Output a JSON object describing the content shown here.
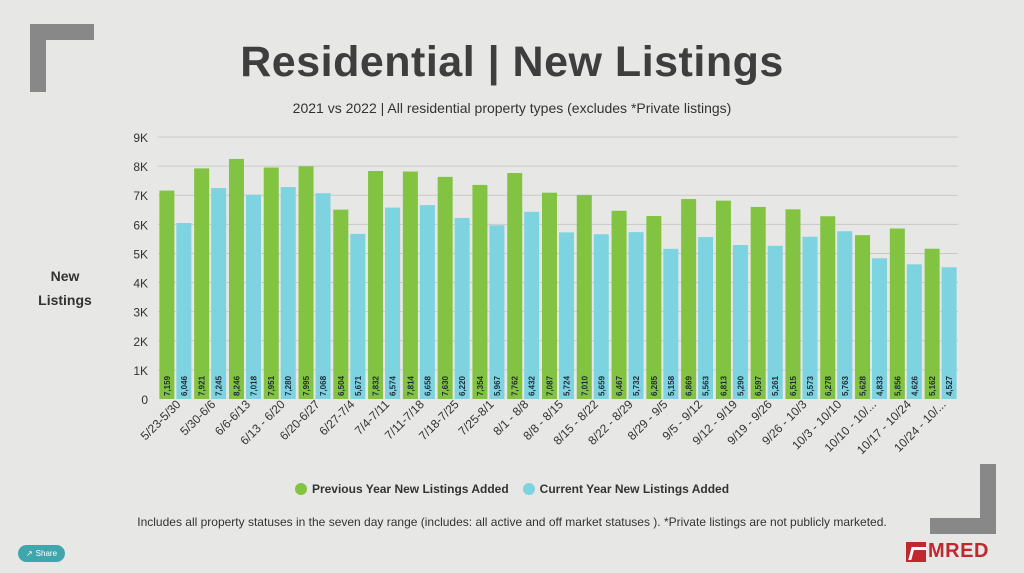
{
  "header": {
    "title": "Residential | New Listings",
    "subtitle": "2021 vs 2022 | All residential property types (excludes *Private listings)"
  },
  "axis": {
    "ylabel_line1": "New",
    "ylabel_line2": "Listings"
  },
  "legend": {
    "prev": "Previous Year New Listings Added",
    "curr": "Current Year New Listings Added"
  },
  "footnote": "Includes all property statuses in the seven day range (includes: all active and off market statuses ).  *Private listings are not publicly marketed.",
  "share_label": "Share",
  "logo_text": "MRED",
  "colors": {
    "previous": "#82c341",
    "current": "#7dd3df",
    "grid": "#c9c9c9"
  },
  "chart_data": {
    "type": "bar",
    "title": "Residential | New Listings",
    "subtitle": "2021 vs 2022 | All residential property types (excludes *Private listings)",
    "ylabel": "New Listings",
    "xlabel": "",
    "ylim": [
      0,
      9000
    ],
    "yticks": [
      0,
      1000,
      2000,
      3000,
      4000,
      5000,
      6000,
      7000,
      8000,
      9000
    ],
    "ytick_labels": [
      "0",
      "1K",
      "2K",
      "3K",
      "4K",
      "5K",
      "6K",
      "7K",
      "8K",
      "9K"
    ],
    "categories": [
      "5/23-5/30",
      "5/30-6/6",
      "6/6-6/13",
      "6/13 - 6/20",
      "6/20-6/27",
      "6/27-7/4",
      "7/4-7/11",
      "7/11-7/18",
      "7/18-7/25",
      "7/25-8/1",
      "8/1 - 8/8",
      "8/8 - 8/15",
      "8/15 - 8/22",
      "8/22 - 8/29",
      "8/29 - 9/5",
      "9/5 - 9/12",
      "9/12 - 9/19",
      "9/19 - 9/26",
      "9/26 - 10/3",
      "10/3 - 10/10",
      "10/10 - 10/...",
      "10/17 - 10/24",
      "10/24 - 10/..."
    ],
    "series": [
      {
        "name": "Previous Year New Listings Added",
        "values": [
          7159,
          7921,
          8246,
          7951,
          7995,
          6504,
          7832,
          7814,
          7630,
          7354,
          7762,
          7087,
          7010,
          6467,
          6285,
          6869,
          6813,
          6597,
          6515,
          6278,
          5628,
          5856,
          5162
        ],
        "labels": [
          "7,159",
          "7,921",
          "8,246",
          "7,951",
          "7,995",
          "6,504",
          "7,832",
          "7,814",
          "7,630",
          "7,354",
          "7,762",
          "7,087",
          "7,010",
          "6,467",
          "6,285",
          "6,869",
          "6,813",
          "6,597",
          "6,515",
          "6,278",
          "5,628",
          "5,856",
          "5,162"
        ]
      },
      {
        "name": "Current Year New Listings Added",
        "values": [
          6046,
          7245,
          7018,
          7280,
          7068,
          5671,
          6574,
          6658,
          6220,
          5967,
          6432,
          5724,
          5659,
          5732,
          5158,
          5563,
          5290,
          5261,
          5573,
          5763,
          4833,
          4626,
          4527
        ],
        "labels": [
          "6,046",
          "7,245",
          "7,018",
          "7,280",
          "7,068",
          "5,671",
          "6,574",
          "6,658",
          "6,220",
          "5,967",
          "6,432",
          "5,724",
          "5,659",
          "5,732",
          "5,158",
          "5,563",
          "5,290",
          "5,261",
          "5,573",
          "5,763",
          "4,833",
          "4,626",
          "4,527"
        ]
      }
    ],
    "legend": "bottom-center",
    "grid": true
  }
}
